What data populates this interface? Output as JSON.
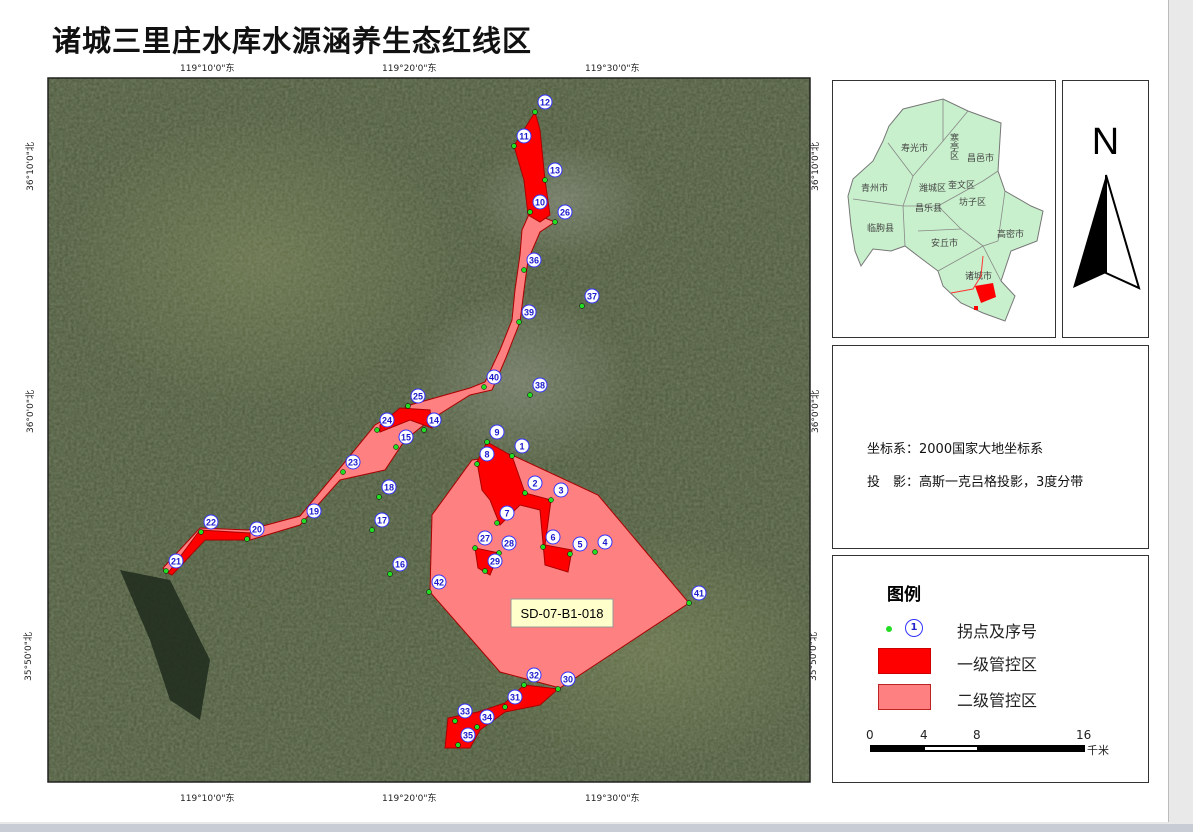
{
  "title": "诸城三里庄水库水源涵养生态红线区",
  "graticule": {
    "lon_labels": [
      "119°10'0\"东",
      "119°20'0\"东",
      "119°30'0\"东"
    ],
    "lat_labels": [
      "36°10'0\"北",
      "36°0'0\"北",
      "35°50'0\"北"
    ]
  },
  "map": {
    "zone_label": "SD-07-B1-018",
    "points": [
      "1",
      "2",
      "3",
      "4",
      "5",
      "6",
      "7",
      "8",
      "9",
      "10",
      "11",
      "12",
      "13",
      "14",
      "15",
      "16",
      "17",
      "18",
      "19",
      "20",
      "21",
      "22",
      "23",
      "24",
      "25",
      "26",
      "27",
      "28",
      "29",
      "30",
      "31",
      "32",
      "33",
      "34",
      "35",
      "36",
      "37",
      "38",
      "39",
      "40",
      "41",
      "42"
    ],
    "colors": {
      "primary": "#ff0000",
      "secondary": "#ff8080",
      "point": "#22dd22",
      "label_ring": "#3333ff"
    }
  },
  "inset": {
    "regions": [
      "寿光市",
      "寒亭区",
      "昌邑市",
      "青州市",
      "潍城区",
      "奎文区",
      "坊子区",
      "昌乐县",
      "临朐县",
      "安丘市",
      "高密市",
      "诸城市"
    ],
    "fill": "#c8f0cc"
  },
  "north_arrow": {
    "label": "N"
  },
  "info": {
    "crs": "坐标系：2000国家大地坐标系",
    "projection": "投　影：高斯一克吕格投影，3度分带"
  },
  "legend": {
    "title": "图例",
    "items": [
      {
        "label": "拐点及序号",
        "sample": "1"
      },
      {
        "label": "一级管控区"
      },
      {
        "label": "二级管控区"
      }
    ],
    "scale": {
      "ticks": [
        "0",
        "4",
        "8",
        "16"
      ],
      "unit": "千米"
    }
  }
}
